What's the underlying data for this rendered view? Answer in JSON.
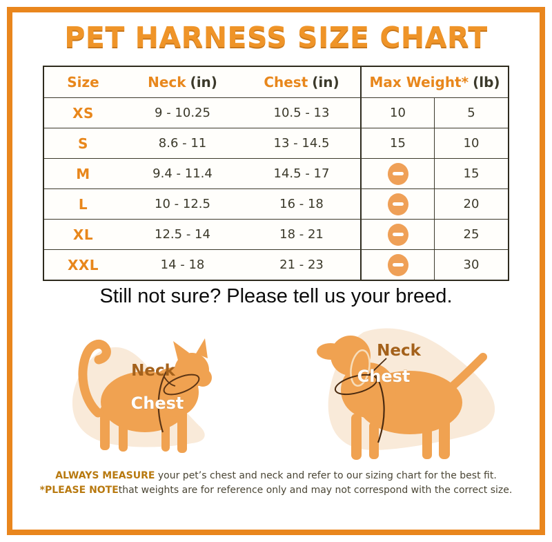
{
  "title": "PET HARNESS SIZE CHART",
  "table": {
    "headers": [
      {
        "label": "Size",
        "unit": ""
      },
      {
        "label": "Neck",
        "unit": "(in)"
      },
      {
        "label": "Chest",
        "unit": "(in)"
      },
      {
        "label": "Max Weight*",
        "unit": "(lb)"
      }
    ],
    "rows": [
      {
        "size": "XS",
        "neck": "9 - 10.25",
        "chest": "10.5 - 13",
        "max_weight_1": "10",
        "max_weight_2": "5"
      },
      {
        "size": "S",
        "neck": "8.6 - 11",
        "chest": "13 - 14.5",
        "max_weight_1": "15",
        "max_weight_2": "10"
      },
      {
        "size": "M",
        "neck": "9.4 - 11.4",
        "chest": "14.5 - 17",
        "max_weight_1": "dash",
        "max_weight_2": "15"
      },
      {
        "size": "L",
        "neck": "10 - 12.5",
        "chest": "16 - 18",
        "max_weight_1": "dash",
        "max_weight_2": "20"
      },
      {
        "size": "XL",
        "neck": "12.5 - 14",
        "chest": "18 - 21",
        "max_weight_1": "dash",
        "max_weight_2": "25"
      },
      {
        "size": "XXL",
        "neck": "14 - 18",
        "chest": "21 - 23",
        "max_weight_1": "dash",
        "max_weight_2": "30"
      }
    ]
  },
  "chart_data": {
    "type": "table",
    "title": "PET HARNESS SIZE CHART",
    "columns": [
      "Size",
      "Neck (in)",
      "Chest (in)",
      "Max Weight* (lb)",
      "Max Weight* (lb)"
    ],
    "rows": [
      [
        "XS",
        "9 - 10.25",
        "10.5 - 13",
        "10",
        "5"
      ],
      [
        "S",
        "8.6 - 11",
        "13 - 14.5",
        "15",
        "10"
      ],
      [
        "M",
        "9.4 - 11.4",
        "14.5 - 17",
        "—",
        "15"
      ],
      [
        "L",
        "10 - 12.5",
        "16 - 18",
        "—",
        "20"
      ],
      [
        "XL",
        "12.5 - 14",
        "18 - 21",
        "—",
        "25"
      ],
      [
        "XXL",
        "14 - 18",
        "21 - 23",
        "—",
        "30"
      ]
    ]
  },
  "subtitle": "Still not sure? Please tell us your breed.",
  "illustrations": {
    "cat": {
      "neck_label": "Neck",
      "chest_label": "Chest"
    },
    "dog": {
      "neck_label": "Neck",
      "chest_label": "Chest"
    }
  },
  "footer": {
    "line1_bold": "ALWAYS MEASURE",
    "line1_rest": " your pet’s chest and neck and refer to our sizing chart for the best fit.",
    "line2_bold": "*PLEASE NOTE",
    "line2_rest": "that weights are for reference only and may not correspond with the correct size."
  },
  "colors": {
    "accent_orange": "#e8871c",
    "title_orange": "#ef9428",
    "body_orange": "#f0a251",
    "blob_peach": "#f9ead9",
    "text_dark": "#3b392a",
    "harness_line": "#4a2a10"
  }
}
